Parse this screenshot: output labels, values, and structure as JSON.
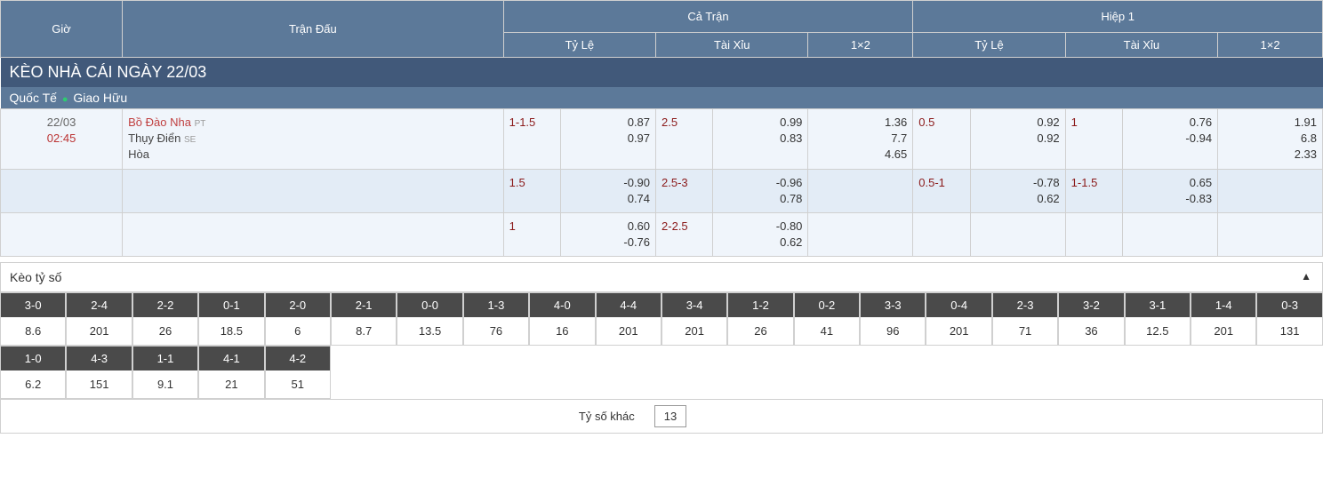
{
  "header": {
    "gio": "Giờ",
    "tran_dau": "Trận Đấu",
    "ca_tran": "Cả Trận",
    "hiep_1": "Hiệp 1",
    "ty_le": "Tỷ Lệ",
    "tai_xiu": "Tài Xỉu",
    "one_x_two": "1×2"
  },
  "title": "KÈO NHÀ CÁI NGÀY 22/03",
  "league": {
    "country": "Quốc Tế",
    "name": "Giao Hữu"
  },
  "match": {
    "date": "22/03",
    "time": "02:45",
    "home": "Bồ Đào Nha",
    "home_code": "PT",
    "away": "Thụy Điển",
    "away_code": "SE",
    "draw": "Hòa"
  },
  "odds_rows": [
    {
      "ft_hdp": "1-1.5",
      "ft_hdp_o1": "0.87",
      "ft_hdp_o2": "0.97",
      "ft_ou": "2.5",
      "ft_ou_o1": "0.99",
      "ft_ou_o2": "0.83",
      "ft_1x2_1": "1.36",
      "ft_1x2_2": "7.7",
      "ft_1x2_3": "4.65",
      "h1_hdp": "0.5",
      "h1_hdp_o1": "0.92",
      "h1_hdp_o2": "0.92",
      "h1_ou": "1",
      "h1_ou_o1": "0.76",
      "h1_ou_o2": "-0.94",
      "h1_1x2_1": "1.91",
      "h1_1x2_2": "6.8",
      "h1_1x2_3": "2.33"
    },
    {
      "ft_hdp": "1.5",
      "ft_hdp_o1": "-0.90",
      "ft_hdp_o2": "0.74",
      "ft_ou": "2.5-3",
      "ft_ou_o1": "-0.96",
      "ft_ou_o2": "0.78",
      "ft_1x2_1": "",
      "ft_1x2_2": "",
      "ft_1x2_3": "",
      "h1_hdp": "0.5-1",
      "h1_hdp_o1": "-0.78",
      "h1_hdp_o2": "0.62",
      "h1_ou": "1-1.5",
      "h1_ou_o1": "0.65",
      "h1_ou_o2": "-0.83",
      "h1_1x2_1": "",
      "h1_1x2_2": "",
      "h1_1x2_3": ""
    },
    {
      "ft_hdp": "1",
      "ft_hdp_o1": "0.60",
      "ft_hdp_o2": "-0.76",
      "ft_ou": "2-2.5",
      "ft_ou_o1": "-0.80",
      "ft_ou_o2": "0.62",
      "ft_1x2_1": "",
      "ft_1x2_2": "",
      "ft_1x2_3": "",
      "h1_hdp": "",
      "h1_hdp_o1": "",
      "h1_hdp_o2": "",
      "h1_ou": "",
      "h1_ou_o1": "",
      "h1_ou_o2": "",
      "h1_1x2_1": "",
      "h1_1x2_2": "",
      "h1_1x2_3": ""
    }
  ],
  "score_section": {
    "title": "Kèo tỷ số",
    "other_label": "Tỷ số khác",
    "other_value": "13",
    "scores": [
      {
        "s": "3-0",
        "o": "8.6"
      },
      {
        "s": "2-4",
        "o": "201"
      },
      {
        "s": "2-2",
        "o": "26"
      },
      {
        "s": "0-1",
        "o": "18.5"
      },
      {
        "s": "2-0",
        "o": "6"
      },
      {
        "s": "2-1",
        "o": "8.7"
      },
      {
        "s": "0-0",
        "o": "13.5"
      },
      {
        "s": "1-3",
        "o": "76"
      },
      {
        "s": "4-0",
        "o": "16"
      },
      {
        "s": "4-4",
        "o": "201"
      },
      {
        "s": "3-4",
        "o": "201"
      },
      {
        "s": "1-2",
        "o": "26"
      },
      {
        "s": "0-2",
        "o": "41"
      },
      {
        "s": "3-3",
        "o": "96"
      },
      {
        "s": "0-4",
        "o": "201"
      },
      {
        "s": "2-3",
        "o": "71"
      },
      {
        "s": "3-2",
        "o": "36"
      },
      {
        "s": "3-1",
        "o": "12.5"
      },
      {
        "s": "1-4",
        "o": "201"
      },
      {
        "s": "0-3",
        "o": "131"
      },
      {
        "s": "1-0",
        "o": "6.2"
      },
      {
        "s": "4-3",
        "o": "151"
      },
      {
        "s": "1-1",
        "o": "9.1"
      },
      {
        "s": "4-1",
        "o": "21"
      },
      {
        "s": "4-2",
        "o": "51"
      }
    ]
  },
  "colors": {
    "header_bg": "#5c7999",
    "title_bg": "#41597a",
    "row_bg": "#f0f5fb",
    "row_alt_bg": "#e3ecf6",
    "score_top_bg": "#4a4a4a",
    "spread_color": "#8b1a1a",
    "home_color": "#c04040",
    "time_color": "#b33"
  }
}
